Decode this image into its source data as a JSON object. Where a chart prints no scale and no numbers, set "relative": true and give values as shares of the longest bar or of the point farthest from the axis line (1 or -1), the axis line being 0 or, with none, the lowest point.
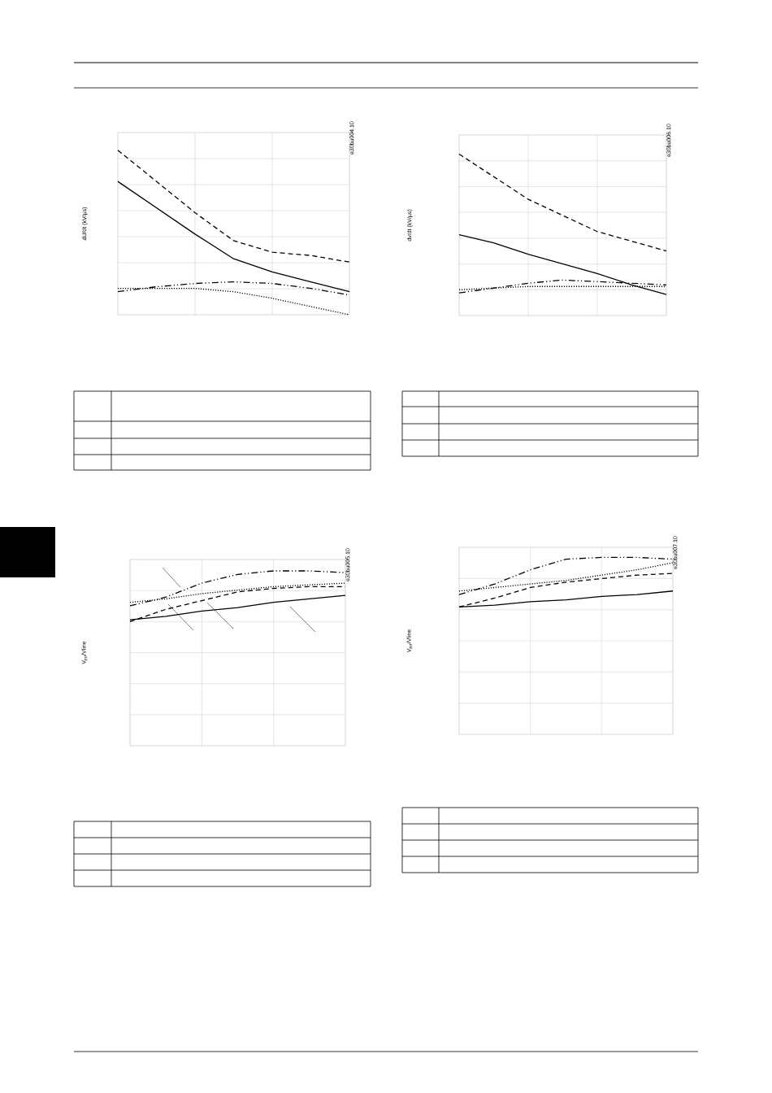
{
  "chart_data": [
    {
      "type": "line",
      "ylabel": "dU/dt (kV/µs)",
      "annotations": [
        "e30bu004.10"
      ],
      "categories": [
        null,
        null,
        null,
        null,
        null,
        null,
        null
      ],
      "relative": true,
      "grid": true,
      "tick_labels": false,
      "marker": "none",
      "series": [
        {
          "color": "#000000",
          "line_style": "dashed",
          "values": [
            1,
            0.81,
            0.62,
            0.45,
            0.38,
            0.36,
            0.32
          ]
        },
        {
          "color": "#000000",
          "line_style": "solid",
          "values": [
            0.81,
            0.65,
            0.49,
            0.34,
            0.26,
            0.2,
            0.14
          ]
        },
        {
          "color": "#000000",
          "line_style": "dashdotdotted",
          "values": [
            0.14,
            0.17,
            0.19,
            0.2,
            0.19,
            0.16,
            0.12
          ]
        },
        {
          "color": "#000000",
          "line_style": "dotted",
          "values": [
            0.16,
            0.16,
            0.16,
            0.14,
            0.1,
            0.05,
            0
          ]
        }
      ]
    },
    {
      "type": "line",
      "ylabel": "dv/dt (kV/µs)",
      "annotations": [
        "e30bu006.10"
      ],
      "categories": [
        null,
        null,
        null,
        null,
        null,
        null,
        null
      ],
      "relative": true,
      "grid": true,
      "tick_labels": false,
      "marker": "none",
      "series": [
        {
          "color": "#000000",
          "line_style": "dashed",
          "values": [
            1,
            0.86,
            0.72,
            0.62,
            0.52,
            0.46,
            0.4
          ]
        },
        {
          "color": "#000000",
          "line_style": "solid",
          "values": [
            0.5,
            0.45,
            0.38,
            0.32,
            0.26,
            0.19,
            0.13
          ]
        },
        {
          "color": "#000000",
          "line_style": "dashdotdotted",
          "values": [
            0.14,
            0.17,
            0.2,
            0.22,
            0.21,
            0.2,
            0.19
          ]
        },
        {
          "color": "#000000",
          "line_style": "dotted",
          "values": [
            0.16,
            0.17,
            0.18,
            0.18,
            0.18,
            0.18,
            0.18
          ]
        }
      ]
    },
    {
      "type": "line",
      "ylabel": "V$_{pp}$/Vline",
      "annotations": [
        "e30bu005.10"
      ],
      "categories": [
        null,
        null,
        null,
        null,
        null,
        null,
        null
      ],
      "relative": true,
      "grid": true,
      "tick_labels": false,
      "marker": "none",
      "series": [
        {
          "color": "#000000",
          "line_style": "dashdotdotted",
          "values": [
            0.8,
            0.85,
            0.93,
            0.98,
            1,
            1,
            0.99
          ]
        },
        {
          "color": "#000000",
          "line_style": "dotted",
          "values": [
            0.82,
            0.84,
            0.87,
            0.89,
            0.91,
            0.92,
            0.93
          ]
        },
        {
          "color": "#000000",
          "line_style": "dashed",
          "values": [
            0.71,
            0.78,
            0.83,
            0.88,
            0.9,
            0.91,
            0.91
          ]
        },
        {
          "color": "#000000",
          "line_style": "solid",
          "values": [
            0.72,
            0.74,
            0.77,
            0.79,
            0.82,
            0.84,
            0.86
          ]
        }
      ]
    },
    {
      "type": "line",
      "ylabel": "V$_{pp}$/Vline",
      "annotations": [
        "e30bu007.10"
      ],
      "categories": [
        null,
        null,
        null,
        null,
        null,
        null,
        null
      ],
      "relative": true,
      "grid": true,
      "tick_labels": false,
      "marker": "none",
      "series": [
        {
          "color": "#000000",
          "line_style": "dashdotdotted",
          "values": [
            0.79,
            0.85,
            0.93,
            0.99,
            1,
            1,
            0.99
          ]
        },
        {
          "color": "#000000",
          "line_style": "dotted",
          "values": [
            0.81,
            0.83,
            0.85,
            0.87,
            0.9,
            0.93,
            0.97
          ]
        },
        {
          "color": "#000000",
          "line_style": "dashed",
          "values": [
            0.72,
            0.77,
            0.83,
            0.86,
            0.88,
            0.9,
            0.91
          ]
        },
        {
          "color": "#000000",
          "line_style": "solid",
          "values": [
            0.72,
            0.73,
            0.75,
            0.76,
            0.78,
            0.79,
            0.81
          ]
        }
      ]
    }
  ]
}
